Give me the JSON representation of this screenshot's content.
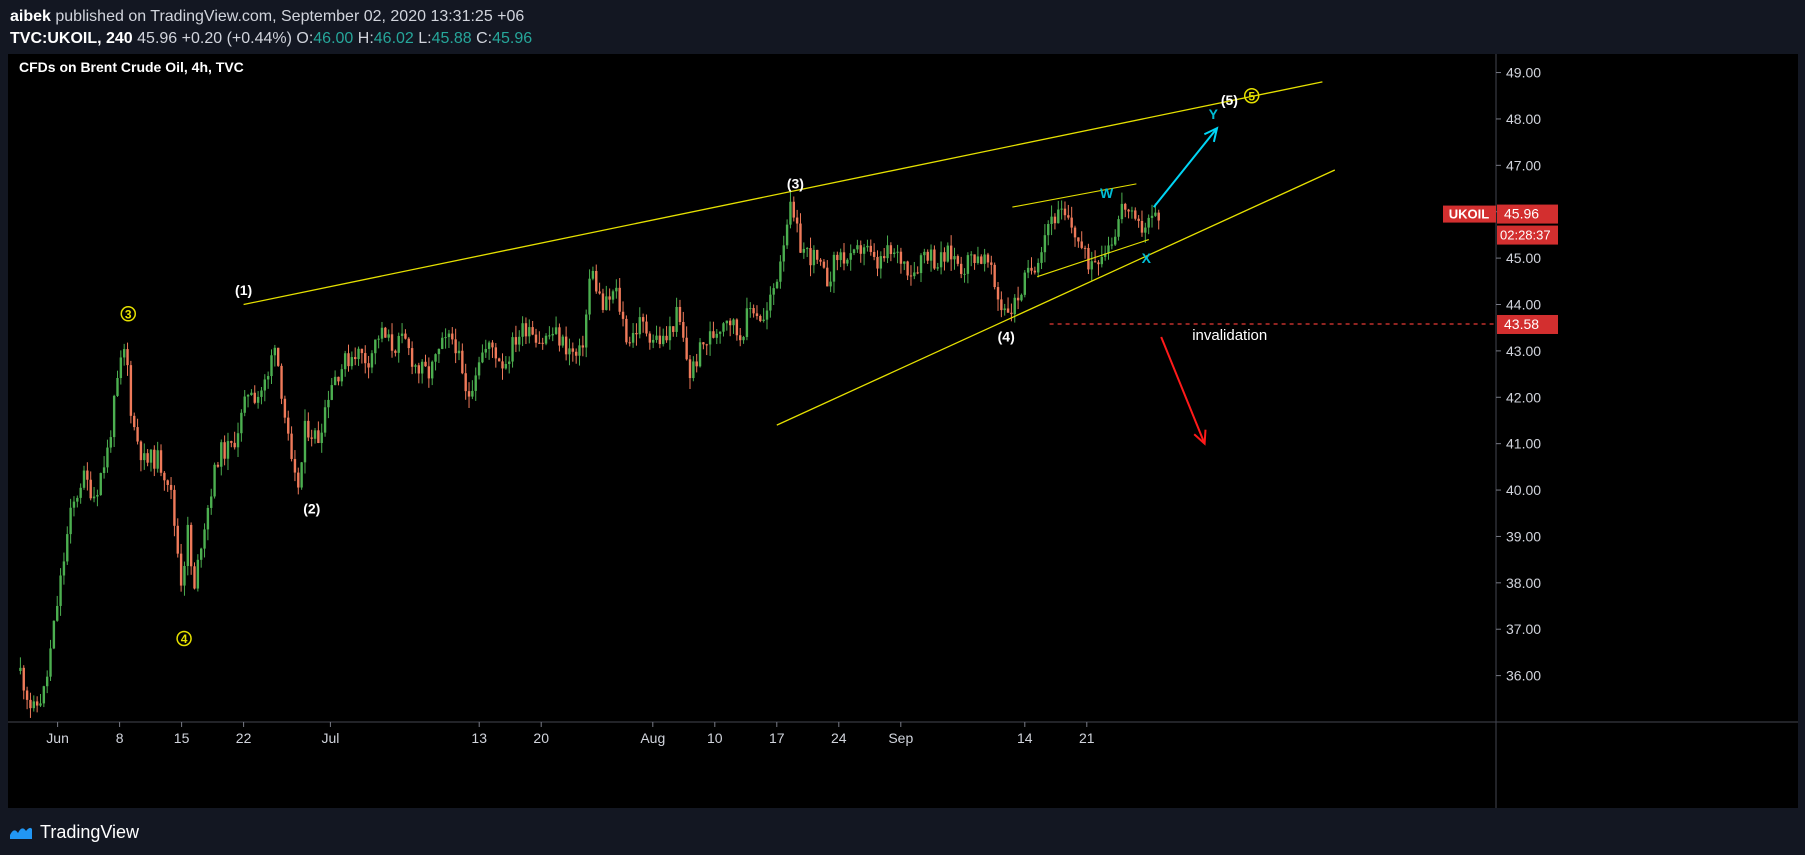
{
  "header": {
    "author": "aibek",
    "published_text": "published on TradingView.com, September 02, 2020 13:31:25 +06",
    "symbol": "TVC:UKOIL, 240",
    "last": "45.96",
    "change": "+0.20 (+0.44%)",
    "o_label": "O:",
    "o_value": "46.00",
    "h_label": "H:",
    "h_value": "46.02",
    "l_label": "L:",
    "l_value": "45.88",
    "c_label": "C:",
    "c_value": "45.96"
  },
  "footer": {
    "brand": "TradingView"
  },
  "chart_data": {
    "type": "candlestick",
    "title": "CFDs on Brent Crude Oil, 4h, TVC",
    "symbol_tag": "UKOIL",
    "last_price": "45.96",
    "countdown": "02:28:37",
    "invalidation_price": "43.58",
    "invalidation_label": "invalidation",
    "ylim": [
      35.0,
      49.4
    ],
    "y_ticks": [
      "49.00",
      "48.00",
      "47.00",
      "46.00",
      "45.00",
      "44.00",
      "43.00",
      "42.00",
      "41.00",
      "40.00",
      "39.00",
      "38.00",
      "37.00",
      "36.00"
    ],
    "x_range": [
      -4,
      116
    ],
    "x_ticks": [
      {
        "label": "Jun",
        "pos": 0
      },
      {
        "label": "8",
        "pos": 5
      },
      {
        "label": "15",
        "pos": 10
      },
      {
        "label": "22",
        "pos": 15
      },
      {
        "label": "Jul",
        "pos": 22
      },
      {
        "label": "13",
        "pos": 34
      },
      {
        "label": "20",
        "pos": 39
      },
      {
        "label": "Aug",
        "pos": 48
      },
      {
        "label": "10",
        "pos": 53
      },
      {
        "label": "17",
        "pos": 58
      },
      {
        "label": "24",
        "pos": 63
      },
      {
        "label": "Sep",
        "pos": 68
      },
      {
        "label": "14",
        "pos": 78
      },
      {
        "label": "21",
        "pos": 83
      }
    ],
    "price_path": [
      [
        -3,
        36.1
      ],
      [
        -2,
        35.2
      ],
      [
        -1,
        35.7
      ],
      [
        0,
        37.6
      ],
      [
        1,
        39.4
      ],
      [
        2,
        40.3
      ],
      [
        3,
        39.9
      ],
      [
        4,
        40.8
      ],
      [
        5,
        42.6
      ],
      [
        5.5,
        43.1
      ],
      [
        6,
        41.5
      ],
      [
        7,
        40.6
      ],
      [
        8,
        40.7
      ],
      [
        9,
        40.2
      ],
      [
        10,
        38.0
      ],
      [
        10.5,
        39.1
      ],
      [
        11,
        37.7
      ],
      [
        11.5,
        38.8
      ],
      [
        12,
        39.5
      ],
      [
        13,
        40.8
      ],
      [
        14,
        40.9
      ],
      [
        15,
        41.7
      ],
      [
        15.5,
        42.3
      ],
      [
        16,
        42.0
      ],
      [
        17,
        42.4
      ],
      [
        17.5,
        43.3
      ],
      [
        18,
        42.3
      ],
      [
        19,
        40.2
      ],
      [
        19.5,
        40.1
      ],
      [
        20,
        41.4
      ],
      [
        21,
        41.1
      ],
      [
        22,
        42.3
      ],
      [
        23,
        42.7
      ],
      [
        24,
        43.0
      ],
      [
        25,
        42.8
      ],
      [
        26,
        43.4
      ],
      [
        27,
        43.1
      ],
      [
        28,
        43.2
      ],
      [
        29,
        42.6
      ],
      [
        30,
        42.5
      ],
      [
        31,
        43.1
      ],
      [
        32,
        43.3
      ],
      [
        33,
        41.9
      ],
      [
        34,
        42.9
      ],
      [
        35,
        43.1
      ],
      [
        36,
        42.7
      ],
      [
        37,
        43.3
      ],
      [
        38,
        43.6
      ],
      [
        39,
        43.2
      ],
      [
        40,
        43.4
      ],
      [
        41,
        43.1
      ],
      [
        42,
        42.8
      ],
      [
        42.5,
        43.4
      ],
      [
        43,
        44.8
      ],
      [
        44,
        43.9
      ],
      [
        45,
        44.3
      ],
      [
        46,
        43.2
      ],
      [
        47,
        43.6
      ],
      [
        48,
        43.3
      ],
      [
        49,
        43.2
      ],
      [
        50,
        43.8
      ],
      [
        51,
        42.5
      ],
      [
        52,
        43.1
      ],
      [
        53,
        43.4
      ],
      [
        54,
        43.8
      ],
      [
        55,
        43.3
      ],
      [
        56,
        44.0
      ],
      [
        57,
        43.6
      ],
      [
        58,
        44.6
      ],
      [
        59,
        46.1
      ],
      [
        60,
        45.2
      ],
      [
        61,
        45.0
      ],
      [
        62,
        44.5
      ],
      [
        63,
        45.1
      ],
      [
        64,
        44.9
      ],
      [
        65,
        45.3
      ],
      [
        66,
        44.8
      ],
      [
        67,
        45.1
      ],
      [
        68,
        45.0
      ],
      [
        69,
        44.7
      ],
      [
        70,
        45.2
      ],
      [
        71,
        44.9
      ],
      [
        72,
        45.1
      ],
      [
        73,
        44.8
      ],
      [
        74,
        45.1
      ],
      [
        75,
        44.9
      ],
      [
        76,
        44.0
      ],
      [
        77,
        43.9
      ],
      [
        78,
        44.5
      ],
      [
        79,
        45.0
      ],
      [
        80,
        45.9
      ],
      [
        81,
        45.9
      ],
      [
        82,
        45.6
      ],
      [
        83,
        44.9
      ],
      [
        84,
        45.1
      ],
      [
        85,
        45.4
      ],
      [
        86,
        46.2
      ],
      [
        87,
        45.6
      ],
      [
        88,
        45.8
      ],
      [
        89,
        46.0
      ]
    ],
    "annotations": {
      "channel_upper": [
        [
          15,
          44.0
        ],
        [
          102,
          48.8
        ]
      ],
      "channel_lower": [
        [
          58,
          41.4
        ],
        [
          103,
          46.9
        ]
      ],
      "wxy_upper": [
        [
          77,
          46.1
        ],
        [
          87,
          46.6
        ]
      ],
      "wxy_lower": [
        [
          79,
          44.6
        ],
        [
          88,
          45.4
        ]
      ],
      "cyan_arrow": [
        [
          88.4,
          46.1
        ],
        [
          93.5,
          47.8
        ]
      ],
      "red_arrow": [
        [
          89,
          43.3
        ],
        [
          92.5,
          41.0
        ]
      ],
      "invalidation_start": 80,
      "labels": [
        {
          "text": "(1)",
          "x": 15,
          "y": 44.2,
          "color": "#ffffff"
        },
        {
          "text": "(2)",
          "x": 20.5,
          "y": 39.5,
          "color": "#ffffff"
        },
        {
          "text": "(3)",
          "x": 59.5,
          "y": 46.5,
          "color": "#ffffff"
        },
        {
          "text": "(4)",
          "x": 76.5,
          "y": 43.2,
          "color": "#ffffff"
        },
        {
          "text": "(5)",
          "x": 94.5,
          "y": 48.3,
          "color": "#ffffff"
        },
        {
          "text": "W",
          "x": 84.6,
          "y": 46.3,
          "color": "#00bcd4"
        },
        {
          "text": "X",
          "x": 87.8,
          "y": 44.9,
          "color": "#00bcd4"
        },
        {
          "text": "Y",
          "x": 93.2,
          "y": 48.0,
          "color": "#00bcd4"
        },
        {
          "text": "3",
          "x": 5.7,
          "y": 43.8,
          "color": "#e5e000",
          "circled": true
        },
        {
          "text": "4",
          "x": 10.2,
          "y": 36.8,
          "color": "#e5e000",
          "circled": true
        },
        {
          "text": "5",
          "x": 96.3,
          "y": 48.5,
          "color": "#e5e000",
          "circled": true
        }
      ]
    }
  }
}
